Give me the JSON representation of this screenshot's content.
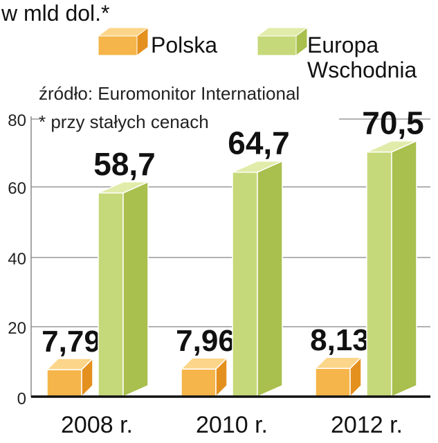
{
  "chart_data": {
    "type": "bar",
    "title": "w mld dol.*",
    "source": "źródło: Euromonitor International",
    "footnote": "* przy stałych cenach",
    "categories": [
      "2008 r.",
      "2010 r.",
      "2012 r."
    ],
    "series": [
      {
        "name": "Polska",
        "values": [
          7.79,
          7.96,
          8.13
        ],
        "labels": [
          "7,79",
          "7,96",
          "8,13"
        ]
      },
      {
        "name": "Europa Wschodnia",
        "values": [
          58.7,
          64.7,
          70.5
        ],
        "labels": [
          "58,7",
          "64,7",
          "70,5"
        ]
      }
    ],
    "legend": {
      "polska": "Polska",
      "europa_line1": "Europa",
      "europa_line2": "Wschodnia"
    },
    "ylim": [
      0,
      80
    ],
    "yticks": [
      0,
      20,
      40,
      60,
      80
    ],
    "grid": true,
    "colors": {
      "polska_front": "#f5b54a",
      "polska_side": "#e4901f",
      "polska_top": "#fbd589",
      "europa_front": "#c6d97a",
      "europa_side": "#a9bf4e",
      "europa_top": "#e1ecaa"
    }
  }
}
